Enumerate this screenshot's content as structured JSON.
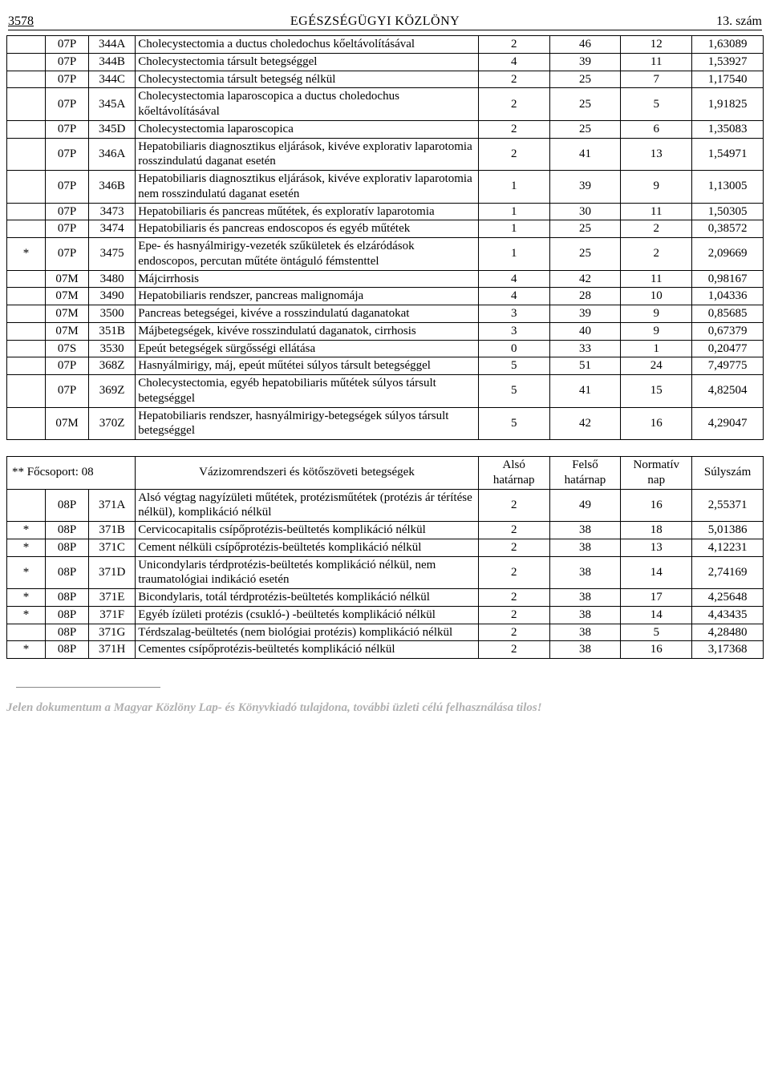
{
  "header": {
    "page_number": "3578",
    "title": "EGÉSZSÉGÜGYI KÖZLÖNY",
    "issue": "13. szám"
  },
  "table1": {
    "rows": [
      {
        "mark": "",
        "grp": "07P",
        "code": "344A",
        "desc": "Cholecystectomia a ductus choledochus kőeltávolításával",
        "v1": "2",
        "v2": "46",
        "v3": "12",
        "v4": "1,63089"
      },
      {
        "mark": "",
        "grp": "07P",
        "code": "344B",
        "desc": "Cholecystectomia társult betegséggel",
        "v1": "4",
        "v2": "39",
        "v3": "11",
        "v4": "1,53927"
      },
      {
        "mark": "",
        "grp": "07P",
        "code": "344C",
        "desc": "Cholecystectomia társult betegség nélkül",
        "v1": "2",
        "v2": "25",
        "v3": "7",
        "v4": "1,17540"
      },
      {
        "mark": "",
        "grp": "07P",
        "code": "345A",
        "desc": "Cholecystectomia laparoscopica a ductus choledochus kőeltávolításával",
        "v1": "2",
        "v2": "25",
        "v3": "5",
        "v4": "1,91825"
      },
      {
        "mark": "",
        "grp": "07P",
        "code": "345D",
        "desc": "Cholecystectomia laparoscopica",
        "v1": "2",
        "v2": "25",
        "v3": "6",
        "v4": "1,35083"
      },
      {
        "mark": "",
        "grp": "07P",
        "code": "346A",
        "desc": "Hepatobiliaris diagnosztikus eljárások, kivéve explorativ laparotomia rosszindulatú daganat esetén",
        "v1": "2",
        "v2": "41",
        "v3": "13",
        "v4": "1,54971"
      },
      {
        "mark": "",
        "grp": "07P",
        "code": "346B",
        "desc": "Hepatobiliaris diagnosztikus eljárások, kivéve explorativ laparotomia nem rosszindulatú daganat esetén",
        "v1": "1",
        "v2": "39",
        "v3": "9",
        "v4": "1,13005"
      },
      {
        "mark": "",
        "grp": "07P",
        "code": "3473",
        "desc": "Hepatobiliaris és pancreas műtétek, és exploratív laparotomia",
        "v1": "1",
        "v2": "30",
        "v3": "11",
        "v4": "1,50305"
      },
      {
        "mark": "",
        "grp": "07P",
        "code": "3474",
        "desc": "Hepatobiliaris és pancreas endoscopos és egyéb műtétek",
        "v1": "1",
        "v2": "25",
        "v3": "2",
        "v4": "0,38572"
      },
      {
        "mark": "*",
        "grp": "07P",
        "code": "3475",
        "desc": "Epe- és hasnyálmirigy-vezeték szűkületek és elzáródások endoscopos, percutan műtéte öntáguló fémstenttel",
        "v1": "1",
        "v2": "25",
        "v3": "2",
        "v4": "2,09669"
      },
      {
        "mark": "",
        "grp": "07M",
        "code": "3480",
        "desc": "Májcirrhosis",
        "v1": "4",
        "v2": "42",
        "v3": "11",
        "v4": "0,98167"
      },
      {
        "mark": "",
        "grp": "07M",
        "code": "3490",
        "desc": "Hepatobiliaris rendszer, pancreas malignomája",
        "v1": "4",
        "v2": "28",
        "v3": "10",
        "v4": "1,04336"
      },
      {
        "mark": "",
        "grp": "07M",
        "code": "3500",
        "desc": "Pancreas betegségei, kivéve a rosszindulatú daganatokat",
        "v1": "3",
        "v2": "39",
        "v3": "9",
        "v4": "0,85685"
      },
      {
        "mark": "",
        "grp": "07M",
        "code": "351B",
        "desc": "Májbetegségek, kivéve rosszindulatú daganatok, cirrhosis",
        "v1": "3",
        "v2": "40",
        "v3": "9",
        "v4": "0,67379"
      },
      {
        "mark": "",
        "grp": "07S",
        "code": "3530",
        "desc": "Epeút betegségek sürgősségi ellátása",
        "v1": "0",
        "v2": "33",
        "v3": "1",
        "v4": "0,20477"
      },
      {
        "mark": "",
        "grp": "07P",
        "code": "368Z",
        "desc": "Hasnyálmirigy, máj, epeút műtétei súlyos társult betegséggel",
        "v1": "5",
        "v2": "51",
        "v3": "24",
        "v4": "7,49775"
      },
      {
        "mark": "",
        "grp": "07P",
        "code": "369Z",
        "desc": "Cholecystectomia, egyéb hepatobiliaris műtétek súlyos társult betegséggel",
        "v1": "5",
        "v2": "41",
        "v3": "15",
        "v4": "4,82504"
      },
      {
        "mark": "",
        "grp": "07M",
        "code": "370Z",
        "desc": "Hepatobiliaris rendszer, hasnyálmirigy-betegségek súlyos társult betegséggel",
        "v1": "5",
        "v2": "42",
        "v3": "16",
        "v4": "4,29047"
      }
    ]
  },
  "group2": {
    "label": "** Főcsoport: 08",
    "title": "Vázizomrendszeri és kötőszöveti betegségek",
    "h1": "Alsó határnap",
    "h2": "Felső határnap",
    "h3": "Normatív nap",
    "h4": "Súlyszám"
  },
  "table2": {
    "rows": [
      {
        "mark": "",
        "grp": "08P",
        "code": "371A",
        "desc": "Alsó végtag nagyízületi műtétek, protézisműtétek (protézis ár térítése nélkül), komplikáció nélkül",
        "v1": "2",
        "v2": "49",
        "v3": "16",
        "v4": "2,55371"
      },
      {
        "mark": "*",
        "grp": "08P",
        "code": "371B",
        "desc": "Cervicocapitalis csípőprotézis-beültetés komplikáció nélkül",
        "v1": "2",
        "v2": "38",
        "v3": "18",
        "v4": "5,01386"
      },
      {
        "mark": "*",
        "grp": "08P",
        "code": "371C",
        "desc": "Cement nélküli csípőprotézis-beültetés komplikáció nélkül",
        "v1": "2",
        "v2": "38",
        "v3": "13",
        "v4": "4,12231"
      },
      {
        "mark": "*",
        "grp": "08P",
        "code": "371D",
        "desc": "Unicondylaris térdprotézis-beültetés komplikáció nélkül, nem traumatológiai indikáció esetén",
        "v1": "2",
        "v2": "38",
        "v3": "14",
        "v4": "2,74169"
      },
      {
        "mark": "*",
        "grp": "08P",
        "code": "371E",
        "desc": "Bicondylaris, totál térdprotézis-beültetés komplikáció nélkül",
        "v1": "2",
        "v2": "38",
        "v3": "17",
        "v4": "4,25648"
      },
      {
        "mark": "*",
        "grp": "08P",
        "code": "371F",
        "desc": "Egyéb ízületi protézis (csukló-) -beültetés komplikáció nélkül",
        "v1": "2",
        "v2": "38",
        "v3": "14",
        "v4": "4,43435"
      },
      {
        "mark": "",
        "grp": "08P",
        "code": "371G",
        "desc": "Térdszalag-beültetés (nem biológiai protézis) komplikáció nélkül",
        "v1": "2",
        "v2": "38",
        "v3": "5",
        "v4": "4,28480"
      },
      {
        "mark": "*",
        "grp": "08P",
        "code": "371H",
        "desc": "Cementes csípőprotézis-beültetés komplikáció nélkül",
        "v1": "2",
        "v2": "38",
        "v3": "16",
        "v4": "3,17368"
      }
    ]
  },
  "footer": "Jelen dokumentum a Magyar Közlöny Lap- és Könyvkiadó tulajdona, további üzleti célú felhasználása tilos!"
}
